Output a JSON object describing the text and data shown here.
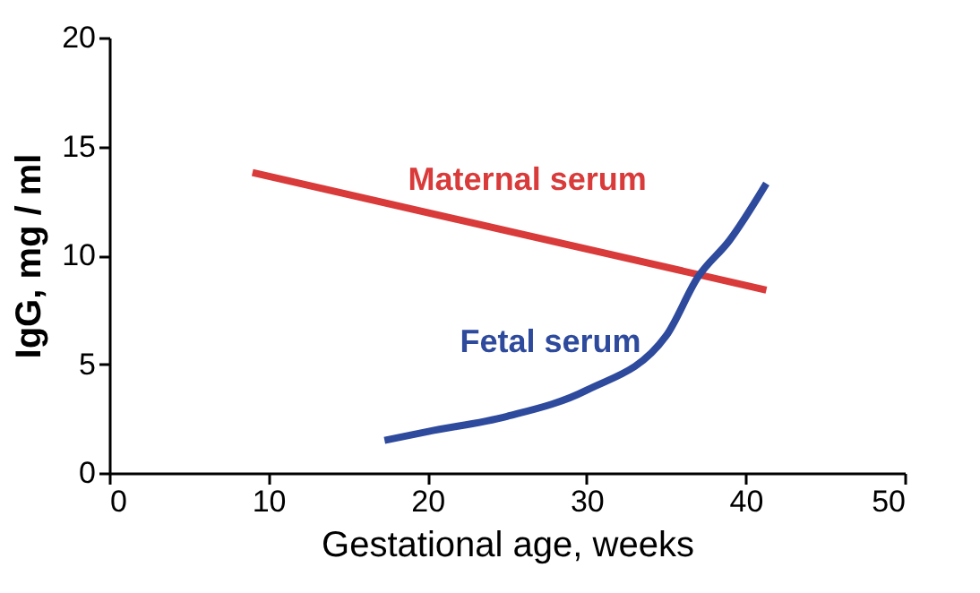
{
  "chart_data": {
    "type": "line",
    "xlabel": "Gestational age, weeks",
    "ylabel": "IgG, mg / ml",
    "xlim": [
      0,
      50
    ],
    "xticks": [
      0,
      10,
      20,
      30,
      40,
      50
    ],
    "ylim": [
      0,
      20
    ],
    "yticks": [
      0,
      5,
      10,
      15,
      20
    ],
    "grid": false,
    "legend": false,
    "marker": "none",
    "line_style": "solid",
    "series": [
      {
        "name": "Maternal serum",
        "color": "#d93a3a",
        "x": [
          9,
          41.3
        ],
        "values": [
          13.8,
          8.4
        ]
      },
      {
        "name": "Fetal serum",
        "color": "#2e4a9c",
        "x": [
          17.3,
          20,
          25,
          30,
          35,
          37,
          39,
          41.3
        ],
        "values": [
          1.5,
          1.9,
          2.6,
          3.8,
          6.3,
          9.0,
          10.7,
          13.3
        ]
      }
    ]
  }
}
